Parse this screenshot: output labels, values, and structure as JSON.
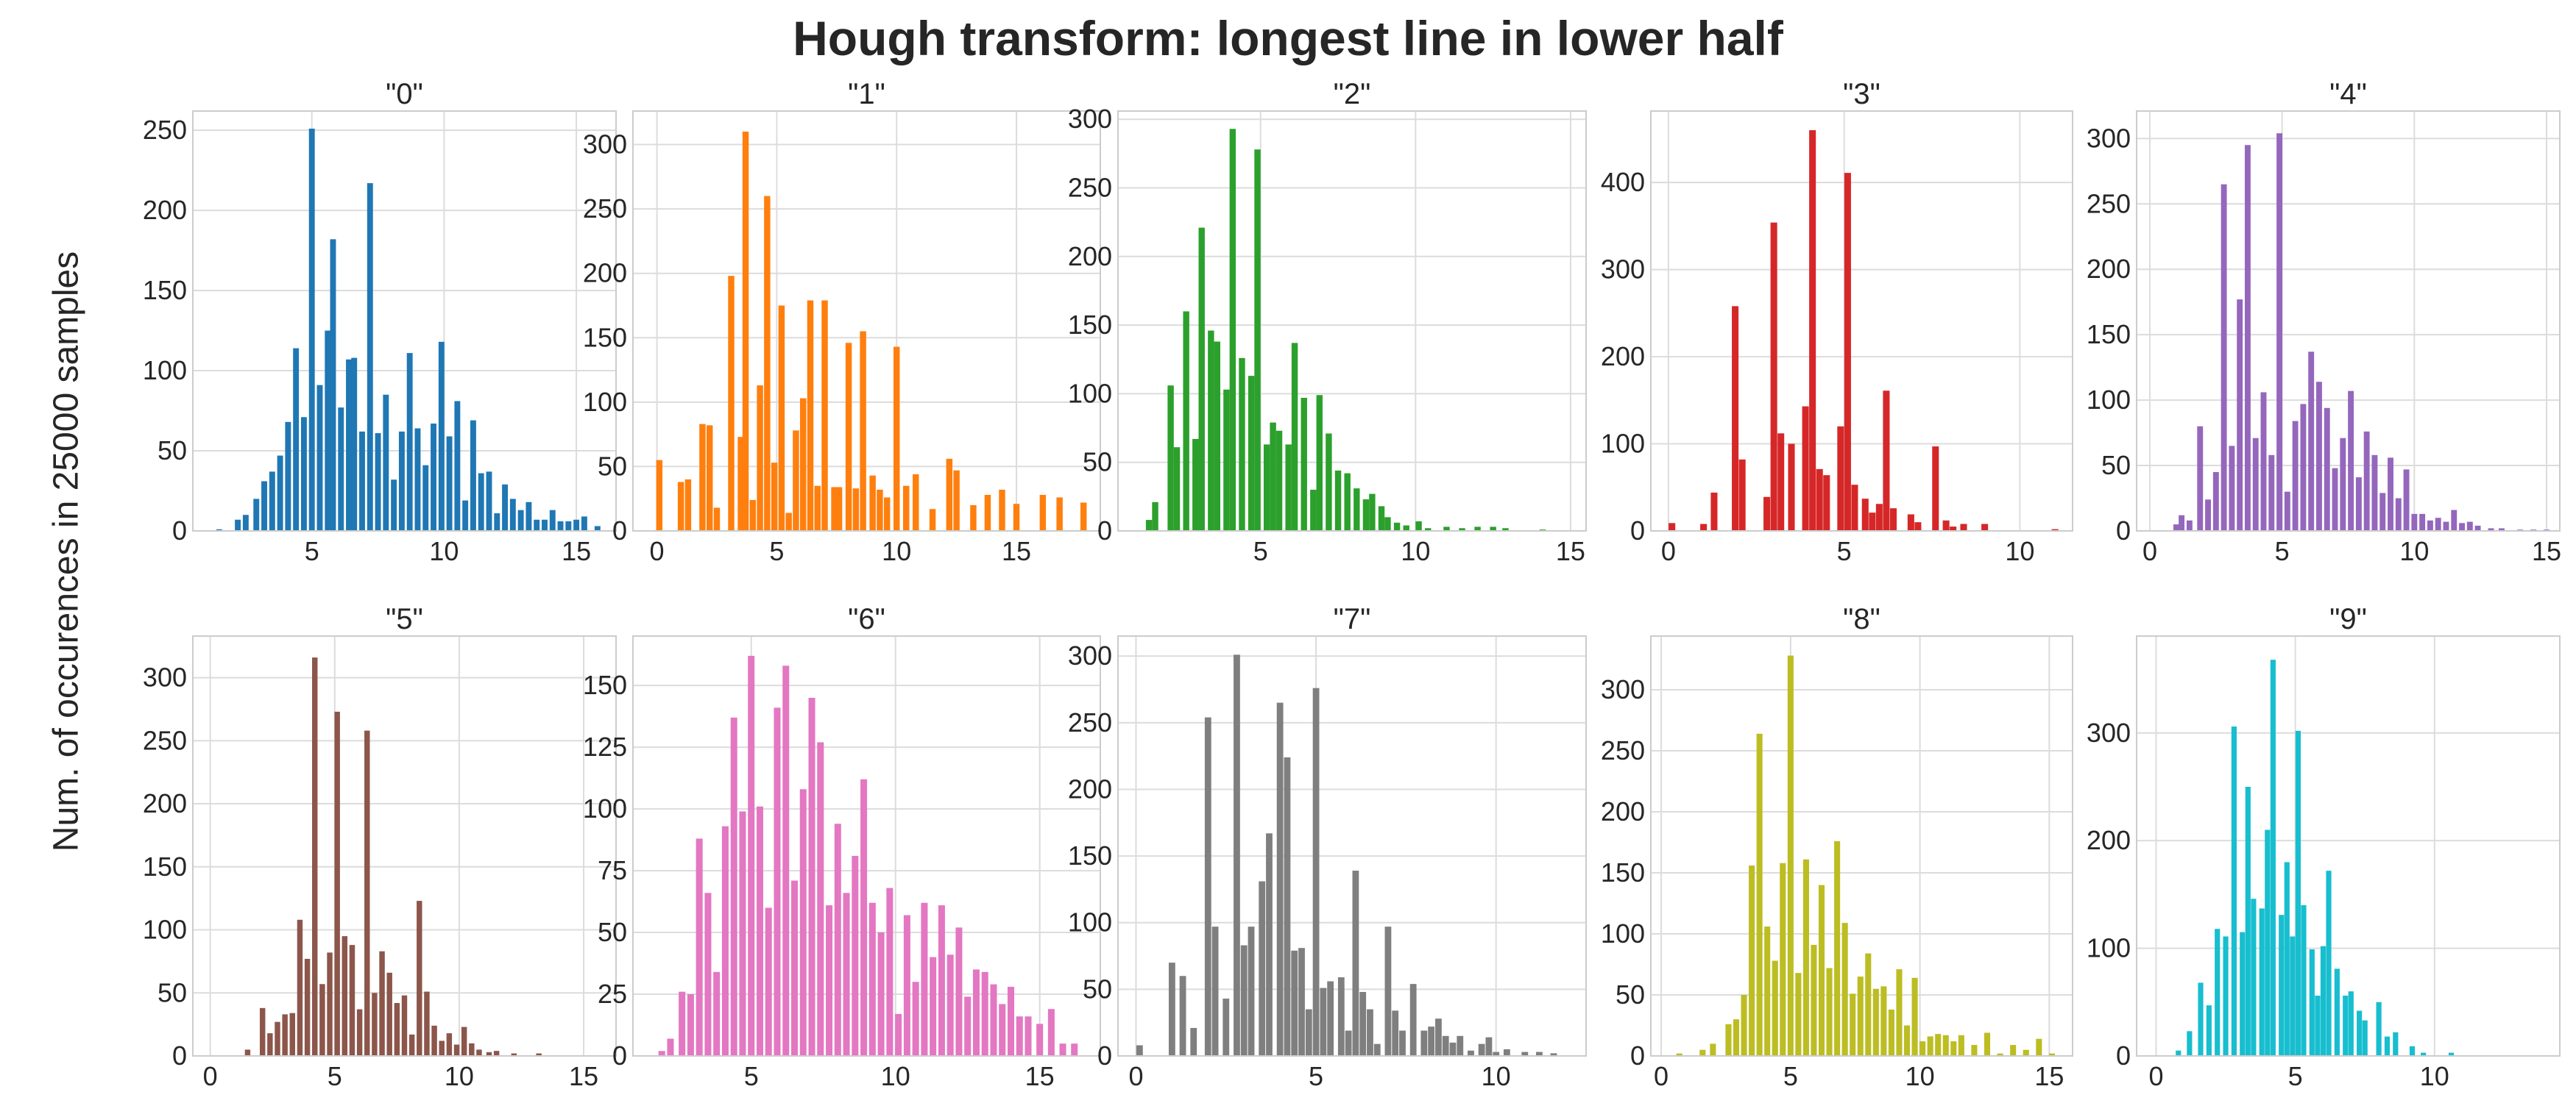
{
  "title": "Hough transform: longest line in lower half",
  "ylabel": "Num. of occurences in 25000 samples",
  "chart_data": [
    {
      "type": "bar",
      "title": "\"0\"",
      "color": "#1f77b4",
      "xlim": [
        0.5,
        16.5
      ],
      "ylim": [
        0,
        262
      ],
      "xticks": [
        5,
        10,
        15
      ],
      "yticks": [
        0,
        50,
        100,
        150,
        200,
        250
      ],
      "bar_width": 0.22,
      "grid": true,
      "x": [
        1.5,
        2.2,
        2.5,
        2.9,
        3.2,
        3.5,
        3.8,
        4.1,
        4.4,
        4.7,
        5.0,
        5.3,
        5.6,
        5.8,
        6.1,
        6.4,
        6.6,
        6.9,
        7.2,
        7.5,
        7.8,
        8.1,
        8.4,
        8.7,
        9.0,
        9.3,
        9.6,
        9.9,
        10.2,
        10.5,
        10.8,
        11.1,
        11.4,
        11.7,
        12.0,
        12.3,
        12.6,
        12.9,
        13.2,
        13.5,
        13.8,
        14.1,
        14.4,
        14.7,
        15.0,
        15.3,
        15.8
      ],
      "values": [
        1,
        7,
        10,
        20,
        31,
        37,
        47,
        68,
        114,
        71,
        251,
        91,
        125,
        182,
        77,
        107,
        108,
        62,
        217,
        61,
        85,
        32,
        62,
        111,
        64,
        41,
        67,
        118,
        59,
        81,
        19,
        69,
        36,
        37,
        11,
        29,
        20,
        13,
        18,
        7,
        7,
        13,
        6,
        6,
        7,
        9,
        3
      ]
    },
    {
      "type": "bar",
      "title": "\"1\"",
      "color": "#ff7f0e",
      "xlim": [
        -1,
        18.5
      ],
      "ylim": [
        0,
        326
      ],
      "xticks": [
        0,
        5,
        10,
        15
      ],
      "yticks": [
        0,
        50,
        100,
        150,
        200,
        250,
        300
      ],
      "bar_width": 0.26,
      "grid": true,
      "x": [
        0.1,
        1.0,
        1.3,
        1.9,
        2.2,
        2.5,
        3.1,
        3.5,
        3.7,
        4.0,
        4.3,
        4.6,
        4.9,
        5.2,
        5.5,
        5.8,
        6.1,
        6.4,
        6.7,
        7.0,
        7.4,
        7.6,
        8.0,
        8.3,
        8.6,
        9.0,
        9.3,
        9.6,
        10.0,
        10.4,
        10.8,
        11.5,
        12.2,
        12.5,
        13.2,
        13.8,
        14.4,
        15.0,
        16.1,
        16.8,
        17.8
      ],
      "values": [
        55,
        38,
        40,
        83,
        82,
        18,
        198,
        73,
        310,
        24,
        113,
        260,
        53,
        175,
        14,
        78,
        103,
        179,
        35,
        179,
        34,
        34,
        146,
        33,
        155,
        43,
        32,
        26,
        143,
        35,
        44,
        17,
        56,
        47,
        20,
        28,
        32,
        21,
        28,
        26,
        22
      ]
    },
    {
      "type": "bar",
      "title": "\"2\"",
      "color": "#2ca02c",
      "xlim": [
        0.4,
        15.5
      ],
      "ylim": [
        0,
        306
      ],
      "xticks": [
        5,
        10,
        15
      ],
      "yticks": [
        0,
        50,
        100,
        150,
        200,
        250,
        300
      ],
      "bar_width": 0.2,
      "grid": true,
      "x": [
        1.4,
        1.6,
        2.1,
        2.3,
        2.6,
        2.9,
        3.1,
        3.4,
        3.6,
        3.9,
        4.1,
        4.4,
        4.7,
        4.9,
        5.2,
        5.4,
        5.6,
        5.9,
        6.1,
        6.4,
        6.7,
        6.9,
        7.2,
        7.5,
        7.8,
        8.1,
        8.4,
        8.6,
        8.9,
        9.1,
        9.4,
        9.7,
        10.1,
        10.4,
        11.0,
        11.5,
        12.0,
        12.5,
        12.9,
        14.1
      ],
      "values": [
        8,
        21,
        106,
        61,
        160,
        67,
        221,
        146,
        138,
        103,
        293,
        126,
        113,
        278,
        63,
        79,
        73,
        63,
        137,
        97,
        30,
        99,
        71,
        44,
        42,
        31,
        23,
        27,
        18,
        10,
        6,
        4,
        7,
        2,
        3,
        2,
        3,
        3,
        2,
        1
      ]
    },
    {
      "type": "bar",
      "title": "\"3\"",
      "color": "#d62728",
      "xlim": [
        -0.5,
        11.5
      ],
      "ylim": [
        0,
        482
      ],
      "xticks": [
        0,
        5,
        10
      ],
      "yticks": [
        0,
        100,
        200,
        300,
        400
      ],
      "bar_width": 0.19,
      "grid": true,
      "x": [
        0.1,
        1.0,
        1.3,
        1.9,
        2.1,
        2.8,
        3.0,
        3.2,
        3.5,
        3.9,
        4.1,
        4.3,
        4.5,
        4.9,
        5.1,
        5.3,
        5.6,
        5.8,
        6.0,
        6.2,
        6.4,
        6.9,
        7.1,
        7.6,
        7.9,
        8.1,
        8.4,
        9.0,
        11.0
      ],
      "values": [
        9,
        8,
        44,
        258,
        82,
        39,
        354,
        112,
        100,
        143,
        460,
        71,
        64,
        120,
        411,
        53,
        37,
        21,
        31,
        161,
        26,
        19,
        10,
        97,
        12,
        5,
        8,
        8,
        2
      ]
    },
    {
      "type": "bar",
      "title": "\"4\"",
      "color": "#9467bd",
      "xlim": [
        -0.5,
        15.5
      ],
      "ylim": [
        0,
        321
      ],
      "xticks": [
        0,
        5,
        10,
        15
      ],
      "yticks": [
        0,
        50,
        100,
        150,
        200,
        250,
        300
      ],
      "bar_width": 0.22,
      "grid": true,
      "x": [
        1.0,
        1.2,
        1.5,
        1.9,
        2.2,
        2.5,
        2.8,
        3.1,
        3.4,
        3.7,
        4.0,
        4.3,
        4.6,
        4.9,
        5.2,
        5.5,
        5.8,
        6.1,
        6.4,
        6.7,
        7.0,
        7.3,
        7.6,
        7.9,
        8.2,
        8.5,
        8.8,
        9.1,
        9.4,
        9.7,
        10.0,
        10.3,
        10.6,
        10.9,
        11.2,
        11.5,
        11.8,
        12.1,
        12.4,
        12.9,
        13.3,
        14.0,
        14.5,
        15.0
      ],
      "values": [
        5,
        12,
        8,
        80,
        24,
        45,
        265,
        65,
        177,
        295,
        71,
        106,
        58,
        304,
        30,
        84,
        97,
        137,
        114,
        94,
        48,
        71,
        107,
        41,
        76,
        58,
        29,
        56,
        25,
        47,
        13,
        13,
        8,
        10,
        7,
        16,
        6,
        7,
        4,
        2,
        2,
        1,
        1,
        1
      ]
    },
    {
      "type": "bar",
      "title": "\"5\"",
      "color": "#8c564b",
      "xlim": [
        -0.7,
        16.3
      ],
      "ylim": [
        0,
        333
      ],
      "xticks": [
        0,
        5,
        10,
        15
      ],
      "yticks": [
        0,
        50,
        100,
        150,
        200,
        250,
        300
      ],
      "bar_width": 0.22,
      "grid": true,
      "x": [
        1.5,
        2.1,
        2.4,
        2.7,
        3.0,
        3.3,
        3.6,
        3.9,
        4.2,
        4.5,
        4.8,
        5.1,
        5.4,
        5.7,
        6.0,
        6.3,
        6.6,
        6.9,
        7.2,
        7.5,
        7.8,
        8.1,
        8.4,
        8.7,
        9.0,
        9.3,
        9.6,
        9.9,
        10.2,
        10.5,
        10.8,
        11.2,
        11.5,
        12.2,
        13.2
      ],
      "values": [
        5,
        38,
        18,
        27,
        33,
        34,
        108,
        77,
        316,
        57,
        82,
        273,
        95,
        88,
        37,
        258,
        50,
        83,
        66,
        42,
        48,
        17,
        123,
        51,
        24,
        12,
        18,
        9,
        23,
        10,
        5,
        3,
        4,
        2,
        2
      ]
    },
    {
      "type": "bar",
      "title": "\"6\"",
      "color": "#e377c2",
      "xlim": [
        0.9,
        17.1
      ],
      "ylim": [
        0,
        170
      ],
      "xticks": [
        5,
        10,
        15
      ],
      "yticks": [
        0,
        25,
        50,
        75,
        100,
        125,
        150
      ],
      "bar_width": 0.23,
      "grid": true,
      "x": [
        1.9,
        2.2,
        2.6,
        2.9,
        3.2,
        3.5,
        3.8,
        4.1,
        4.4,
        4.7,
        5.0,
        5.3,
        5.6,
        5.9,
        6.2,
        6.5,
        6.8,
        7.1,
        7.4,
        7.7,
        8.0,
        8.3,
        8.6,
        8.9,
        9.2,
        9.5,
        9.8,
        10.1,
        10.4,
        10.7,
        11.0,
        11.3,
        11.6,
        11.9,
        12.2,
        12.5,
        12.8,
        13.1,
        13.4,
        13.7,
        14.0,
        14.3,
        14.6,
        15.0,
        15.4,
        15.8,
        16.2
      ],
      "values": [
        2,
        7,
        26,
        25,
        88,
        66,
        34,
        93,
        137,
        99,
        162,
        101,
        60,
        141,
        158,
        71,
        108,
        145,
        127,
        61,
        94,
        66,
        81,
        112,
        62,
        50,
        68,
        17,
        57,
        30,
        62,
        40,
        61,
        41,
        52,
        24,
        35,
        34,
        29,
        21,
        28,
        16,
        16,
        13,
        19,
        5,
        5
      ]
    },
    {
      "type": "bar",
      "title": "\"7\"",
      "color": "#7f7f7f",
      "xlim": [
        -0.5,
        12.5
      ],
      "ylim": [
        0,
        315
      ],
      "xticks": [
        0,
        5,
        10
      ],
      "yticks": [
        0,
        50,
        100,
        150,
        200,
        250,
        300
      ],
      "bar_width": 0.18,
      "grid": true,
      "x": [
        0.1,
        1.0,
        1.3,
        1.6,
        2.0,
        2.2,
        2.5,
        2.8,
        3.0,
        3.2,
        3.5,
        3.7,
        4.0,
        4.2,
        4.4,
        4.6,
        4.8,
        5.0,
        5.2,
        5.4,
        5.7,
        5.9,
        6.1,
        6.3,
        6.5,
        6.7,
        7.0,
        7.2,
        7.4,
        7.7,
        8.0,
        8.2,
        8.4,
        8.6,
        8.8,
        9.0,
        9.3,
        9.6,
        9.8,
        10.0,
        10.3,
        10.8,
        11.2,
        11.6
      ],
      "values": [
        8,
        70,
        60,
        21,
        254,
        97,
        43,
        301,
        83,
        97,
        131,
        167,
        265,
        224,
        79,
        81,
        35,
        276,
        51,
        56,
        59,
        19,
        139,
        48,
        35,
        9,
        97,
        34,
        19,
        54,
        19,
        22,
        28,
        15,
        10,
        15,
        4,
        9,
        14,
        3,
        5,
        3,
        3,
        2
      ]
    },
    {
      "type": "bar",
      "title": "\"8\"",
      "color": "#bcbd22",
      "xlim": [
        -0.4,
        15.9
      ],
      "ylim": [
        0,
        344
      ],
      "xticks": [
        0,
        5,
        10,
        15
      ],
      "yticks": [
        0,
        50,
        100,
        150,
        200,
        250,
        300
      ],
      "bar_width": 0.23,
      "grid": true,
      "x": [
        0.7,
        1.6,
        2.0,
        2.6,
        2.9,
        3.2,
        3.5,
        3.8,
        4.1,
        4.4,
        4.7,
        5.0,
        5.3,
        5.6,
        5.9,
        6.2,
        6.5,
        6.8,
        7.1,
        7.4,
        7.7,
        8.0,
        8.3,
        8.6,
        8.9,
        9.2,
        9.5,
        9.8,
        10.1,
        10.4,
        10.7,
        11.0,
        11.3,
        11.6,
        12.1,
        12.6,
        13.1,
        13.6,
        14.1,
        14.6,
        15.1
      ],
      "values": [
        2,
        5,
        10,
        26,
        30,
        50,
        156,
        264,
        106,
        78,
        158,
        328,
        68,
        161,
        91,
        140,
        72,
        176,
        109,
        51,
        65,
        84,
        55,
        57,
        38,
        71,
        25,
        64,
        12,
        16,
        18,
        17,
        12,
        17,
        9,
        19,
        2,
        9,
        5,
        14,
        2
      ]
    },
    {
      "type": "bar",
      "title": "\"9\"",
      "color": "#17becf",
      "xlim": [
        -0.7,
        14.5
      ],
      "ylim": [
        0,
        390
      ],
      "xticks": [
        0,
        5,
        10
      ],
      "yticks": [
        0,
        100,
        200,
        300
      ],
      "bar_width": 0.19,
      "grid": true,
      "x": [
        0.8,
        1.2,
        1.6,
        1.9,
        2.2,
        2.5,
        2.8,
        3.1,
        3.3,
        3.5,
        3.8,
        4.0,
        4.2,
        4.5,
        4.7,
        4.9,
        5.1,
        5.3,
        5.6,
        5.8,
        6.0,
        6.2,
        6.5,
        6.8,
        7.0,
        7.3,
        7.5,
        8.0,
        8.3,
        8.6,
        9.2,
        9.6,
        10.6
      ],
      "values": [
        5,
        23,
        68,
        47,
        118,
        111,
        306,
        115,
        250,
        146,
        137,
        210,
        368,
        131,
        180,
        111,
        302,
        140,
        99,
        56,
        102,
        172,
        81,
        56,
        60,
        42,
        33,
        50,
        18,
        22,
        9,
        3,
        3
      ]
    }
  ]
}
